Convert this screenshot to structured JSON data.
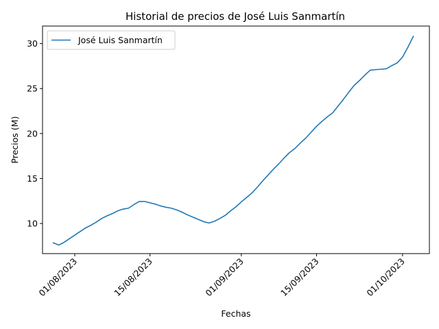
{
  "chart_data": {
    "type": "line",
    "title": "Historial de precios de José Luis Sanmartín",
    "xlabel": "Fechas",
    "ylabel": "Precios (M)",
    "x_ticks": [
      "01/08/2023",
      "15/08/2023",
      "01/09/2023",
      "15/09/2023",
      "01/10/2023"
    ],
    "y_ticks": [
      "10",
      "15",
      "20",
      "25",
      "30"
    ],
    "ylim": [
      6.65,
      31.95
    ],
    "xlim": [
      "2023-07-26",
      "2023-10-06"
    ],
    "grid": false,
    "legend_position": "top-left",
    "series": [
      {
        "name": "José Luis Sanmartín",
        "color": "#1f77b4",
        "points": [
          [
            "2023-07-28",
            7.85
          ],
          [
            "2023-07-29",
            7.6
          ],
          [
            "2023-07-30",
            7.9
          ],
          [
            "2023-07-31",
            8.3
          ],
          [
            "2023-08-01",
            8.7
          ],
          [
            "2023-08-02",
            9.1
          ],
          [
            "2023-08-03",
            9.5
          ],
          [
            "2023-08-04",
            9.8
          ],
          [
            "2023-08-05",
            10.15
          ],
          [
            "2023-08-06",
            10.55
          ],
          [
            "2023-08-07",
            10.85
          ],
          [
            "2023-08-08",
            11.1
          ],
          [
            "2023-08-09",
            11.4
          ],
          [
            "2023-08-10",
            11.6
          ],
          [
            "2023-08-11",
            11.7
          ],
          [
            "2023-08-12",
            12.1
          ],
          [
            "2023-08-13",
            12.45
          ],
          [
            "2023-08-14",
            12.45
          ],
          [
            "2023-08-15",
            12.3
          ],
          [
            "2023-08-16",
            12.15
          ],
          [
            "2023-08-17",
            11.95
          ],
          [
            "2023-08-18",
            11.8
          ],
          [
            "2023-08-19",
            11.7
          ],
          [
            "2023-08-20",
            11.5
          ],
          [
            "2023-08-21",
            11.25
          ],
          [
            "2023-08-22",
            10.95
          ],
          [
            "2023-08-23",
            10.7
          ],
          [
            "2023-08-24",
            10.45
          ],
          [
            "2023-08-25",
            10.2
          ],
          [
            "2023-08-26",
            10.05
          ],
          [
            "2023-08-27",
            10.25
          ],
          [
            "2023-08-28",
            10.55
          ],
          [
            "2023-08-29",
            10.9
          ],
          [
            "2023-08-30",
            11.4
          ],
          [
            "2023-08-31",
            11.85
          ],
          [
            "2023-09-01",
            12.4
          ],
          [
            "2023-09-02",
            12.9
          ],
          [
            "2023-09-03",
            13.4
          ],
          [
            "2023-09-04",
            14.05
          ],
          [
            "2023-09-05",
            14.75
          ],
          [
            "2023-09-06",
            15.4
          ],
          [
            "2023-09-07",
            16.05
          ],
          [
            "2023-09-08",
            16.65
          ],
          [
            "2023-09-09",
            17.3
          ],
          [
            "2023-09-10",
            17.9
          ],
          [
            "2023-09-11",
            18.35
          ],
          [
            "2023-09-12",
            18.95
          ],
          [
            "2023-09-13",
            19.5
          ],
          [
            "2023-09-14",
            20.15
          ],
          [
            "2023-09-15",
            20.8
          ],
          [
            "2023-09-16",
            21.35
          ],
          [
            "2023-09-17",
            21.85
          ],
          [
            "2023-09-18",
            22.3
          ],
          [
            "2023-09-19",
            23.05
          ],
          [
            "2023-09-20",
            23.8
          ],
          [
            "2023-09-21",
            24.6
          ],
          [
            "2023-09-22",
            25.35
          ],
          [
            "2023-09-23",
            25.9
          ],
          [
            "2023-09-24",
            26.5
          ],
          [
            "2023-09-25",
            27.05
          ],
          [
            "2023-09-26",
            27.1
          ],
          [
            "2023-09-27",
            27.15
          ],
          [
            "2023-09-28",
            27.2
          ],
          [
            "2023-09-29",
            27.55
          ],
          [
            "2023-09-30",
            27.85
          ],
          [
            "2023-10-01",
            28.5
          ],
          [
            "2023-10-02",
            29.6
          ],
          [
            "2023-10-03",
            30.8
          ]
        ]
      }
    ]
  }
}
